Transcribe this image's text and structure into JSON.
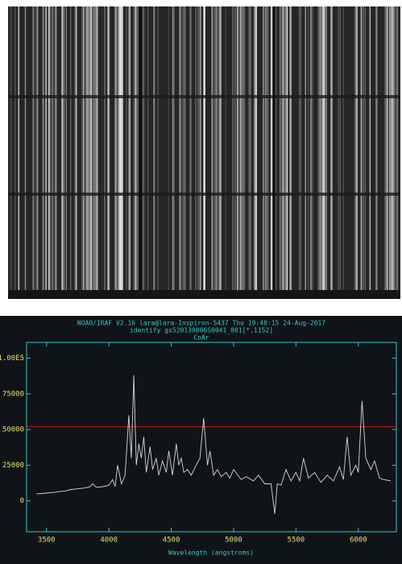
{
  "chart_data": {
    "type": "line",
    "header": "NOAO/IRAF V2.16 lara@lara-Inspiron-5437 Thu 19:48:15 24-Aug-2017",
    "title": "identify gs520130806S0041_001[*,1152]",
    "subtitle": "CoAr",
    "x_label": "Wavelength (angstroms)",
    "x": [
      3420,
      3500,
      3560,
      3600,
      3650,
      3700,
      3750,
      3800,
      3850,
      3870,
      3900,
      3950,
      4000,
      4030,
      4050,
      4070,
      4100,
      4130,
      4160,
      4180,
      4200,
      4220,
      4240,
      4260,
      4280,
      4300,
      4330,
      4350,
      4380,
      4400,
      4430,
      4460,
      4480,
      4510,
      4540,
      4560,
      4580,
      4600,
      4630,
      4660,
      4700,
      4730,
      4760,
      4790,
      4810,
      4840,
      4870,
      4900,
      4940,
      4970,
      5000,
      5060,
      5100,
      5160,
      5200,
      5250,
      5300,
      5330,
      5350,
      5380,
      5420,
      5460,
      5500,
      5530,
      5560,
      5600,
      5650,
      5700,
      5750,
      5800,
      5850,
      5880,
      5910,
      5940,
      5980,
      6000,
      6030,
      6060,
      6100,
      6130,
      6170,
      6200,
      6260
    ],
    "series": [
      {
        "color": "#d8d8d8",
        "values": [
          5000,
          5500,
          6000,
          6500,
          7000,
          8000,
          8500,
          9000,
          10000,
          12000,
          9500,
          10000,
          11000,
          15000,
          10000,
          25000,
          12000,
          18000,
          60000,
          30000,
          88000,
          25000,
          40000,
          30000,
          45000,
          20000,
          38000,
          22000,
          30000,
          18000,
          28000,
          20000,
          35000,
          18000,
          40000,
          25000,
          30000,
          20000,
          22000,
          18000,
          25000,
          30000,
          58000,
          25000,
          35000,
          18000,
          22000,
          17000,
          20000,
          16000,
          22000,
          15000,
          17000,
          14000,
          18000,
          12000,
          12000,
          -9000,
          12000,
          11000,
          22000,
          14000,
          20000,
          14000,
          30000,
          16000,
          20000,
          13000,
          18000,
          14000,
          24000,
          15000,
          45000,
          18000,
          25000,
          20000,
          70000,
          30000,
          22000,
          28000,
          16000,
          15000,
          14000
        ]
      }
    ],
    "xlim": [
      3340,
      6305
    ],
    "ylim": [
      -21600,
      111000
    ],
    "xticks": [
      3500,
      4000,
      4500,
      5000,
      5500,
      6000
    ],
    "yticks": [
      0,
      25000,
      50000,
      75000,
      {
        "value": 100000,
        "label": "1.00E5"
      }
    ],
    "reference_line": 52000,
    "reference_color": "#b01818"
  }
}
